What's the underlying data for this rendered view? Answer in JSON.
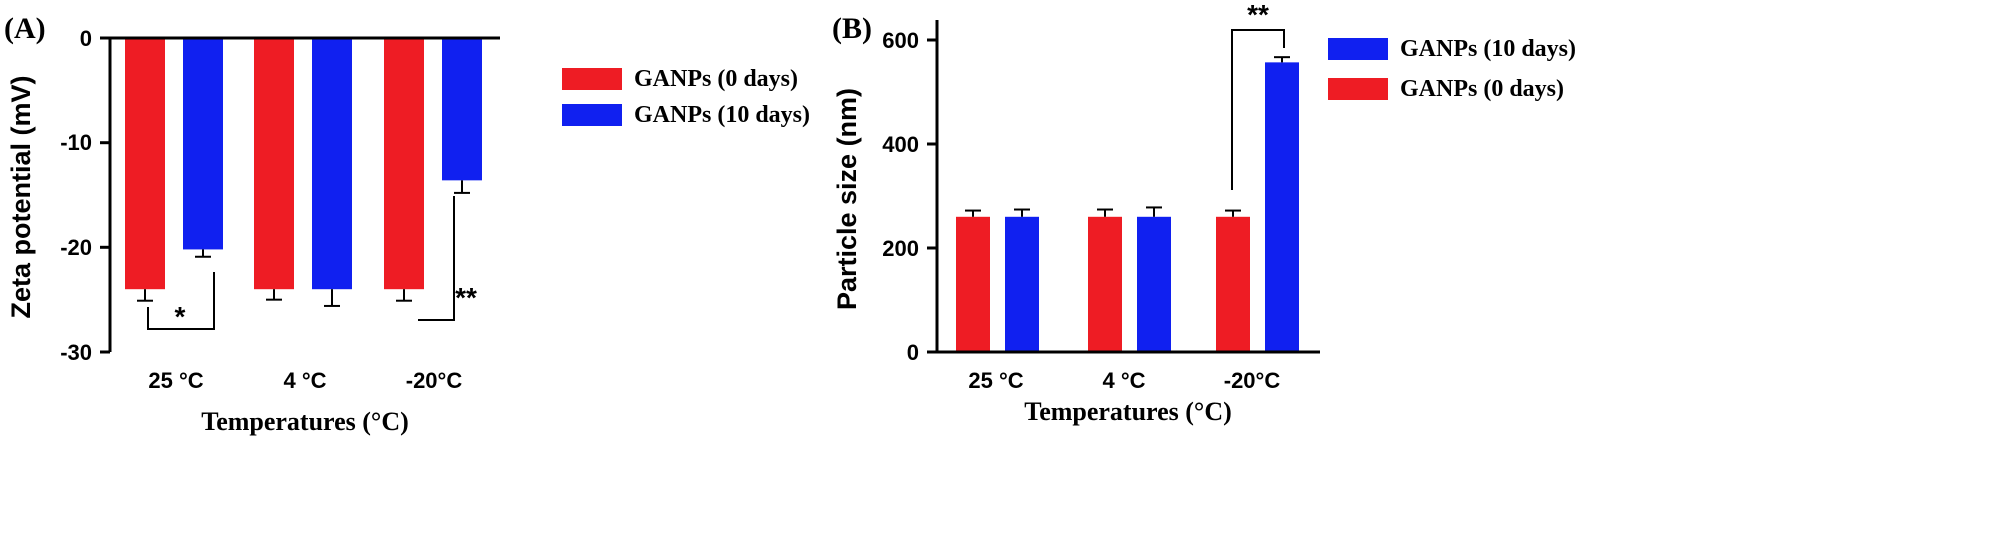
{
  "chart_data": [
    {
      "panel": "(A)",
      "type": "bar",
      "ylabel": "Zeta potential (mV)",
      "xlabel": "Temperatures (°C)",
      "ylim": [
        -30,
        0
      ],
      "yticks": [
        "0",
        "-10",
        "-20",
        "-30"
      ],
      "categories": [
        "25 °C",
        "4 °C",
        "-20°C"
      ],
      "series": [
        {
          "name": "GANPs (0 days)",
          "color": "#ee1c24",
          "values": [
            -24.0,
            -24.0,
            -24.0
          ],
          "errors": [
            1.1,
            1.0,
            1.1
          ]
        },
        {
          "name": "GANPs (10 days)",
          "color": "#1020f0",
          "values": [
            -20.2,
            -24.0,
            -13.6
          ],
          "errors": [
            0.7,
            1.6,
            1.2
          ]
        }
      ],
      "significance": [
        {
          "category": 0,
          "label": "*"
        },
        {
          "category": 2,
          "label": "**"
        }
      ],
      "legend": "right",
      "grid": false
    },
    {
      "panel": "(B)",
      "type": "bar",
      "ylabel": "Particle size (nm)",
      "xlabel": "Temperatures (°C)",
      "ylim": [
        0,
        600
      ],
      "yticks": [
        "0",
        "200",
        "400",
        "600"
      ],
      "categories": [
        "25 °C",
        "4 °C",
        "-20°C"
      ],
      "series": [
        {
          "name": "GANPs (0 days)",
          "color": "#ee1c24",
          "values": [
            260,
            260,
            260
          ],
          "errors": [
            12,
            14,
            12
          ]
        },
        {
          "name": "GANPs (10 days)",
          "color": "#1020f0",
          "values": [
            260,
            260,
            557
          ],
          "errors": [
            14,
            18,
            10
          ]
        }
      ],
      "significance": [
        {
          "category": 2,
          "label": "**"
        }
      ],
      "legend_order": [
        "GANPs (10 days)",
        "GANPs (0 days)"
      ],
      "legend": "right",
      "grid": false
    }
  ]
}
